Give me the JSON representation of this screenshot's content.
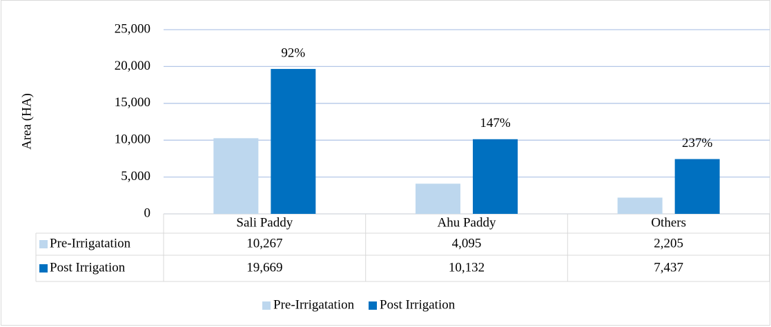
{
  "chart_data": {
    "type": "bar",
    "y_label": "Area (HA)",
    "categories": [
      "Sali Paddy",
      "Ahu Paddy",
      "Others"
    ],
    "series": [
      {
        "name": "Pre-Irrigatation",
        "color": "#bdd7ee",
        "values": [
          10267,
          4095,
          2205
        ],
        "value_labels": [
          "10,267",
          "4,095",
          "2,205"
        ]
      },
      {
        "name": "Post Irrigation",
        "color": "#0070c0",
        "values": [
          19669,
          10132,
          7437
        ],
        "value_labels": [
          "19,669",
          "10,132",
          "7,437"
        ]
      }
    ],
    "annotations": [
      "92%",
      "147%",
      "237%"
    ],
    "ylim": [
      0,
      25000
    ],
    "yticks": [
      0,
      {
        "value": 5000,
        "label": "5,000"
      },
      {
        "value": 10000,
        "label": "10,000"
      },
      {
        "value": 15000,
        "label": "15,000"
      },
      {
        "value": 20000,
        "label": "20,000"
      },
      {
        "value": 25000,
        "label": "25,000"
      }
    ],
    "grid": true
  }
}
